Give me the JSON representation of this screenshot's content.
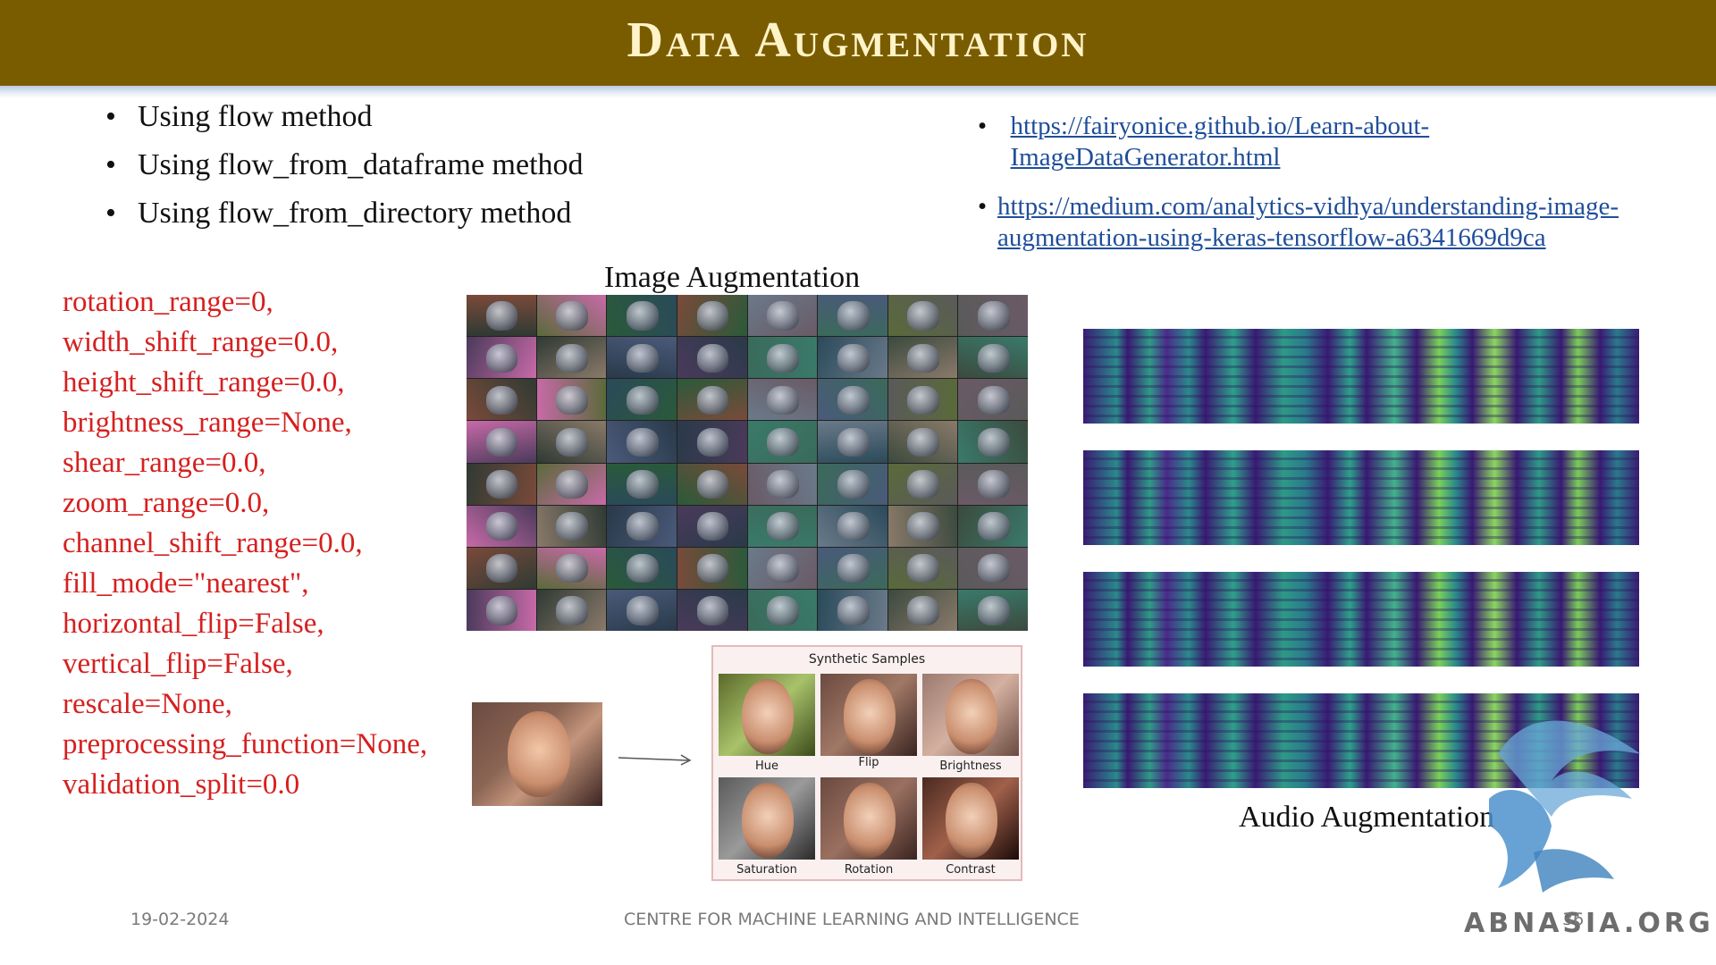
{
  "slide": {
    "title": "Data Augmentation",
    "bullets": [
      "Using flow method",
      "Using flow_from_dataframe method",
      "Using flow_from_directory method"
    ],
    "links": [
      "https://fairyonice.github.io/Learn-about-ImageDataGenerator.html",
      "https://medium.com/analytics-vidhya/understanding-image-augmentation-using-keras-tensorflow-a6341669d9ca"
    ],
    "params": [
      "rotation_range=0,",
      "width_shift_range=0.0,",
      "height_shift_range=0.0,",
      "brightness_range=None,",
      "shear_range=0.0,",
      "zoom_range=0.0,",
      "channel_shift_range=0.0,",
      "fill_mode=\"nearest\",",
      "horizontal_flip=False,",
      "vertical_flip=False,",
      "rescale=None,",
      "preprocessing_function=None,",
      "validation_split=0.0"
    ],
    "image_aug_label": "Image  Augmentation",
    "audio_aug_label": "Audio  Augmentation",
    "synthetic": {
      "title": "Synthetic Samples",
      "captions": [
        "Hue",
        "Flip",
        "Brightness",
        "Saturation",
        "Rotation",
        "Contrast"
      ]
    },
    "watermark": "ABNASIA.ORG",
    "footer": {
      "date": "19-02-2024",
      "center": "CENTRE FOR MACHINE LEARNING AND INTELLIGENCE",
      "page": "36"
    }
  },
  "colors": {
    "header_bg": "#7a5c00",
    "title": "#fff3c8",
    "params": "#d61f1f",
    "link": "#1f4e9a"
  }
}
